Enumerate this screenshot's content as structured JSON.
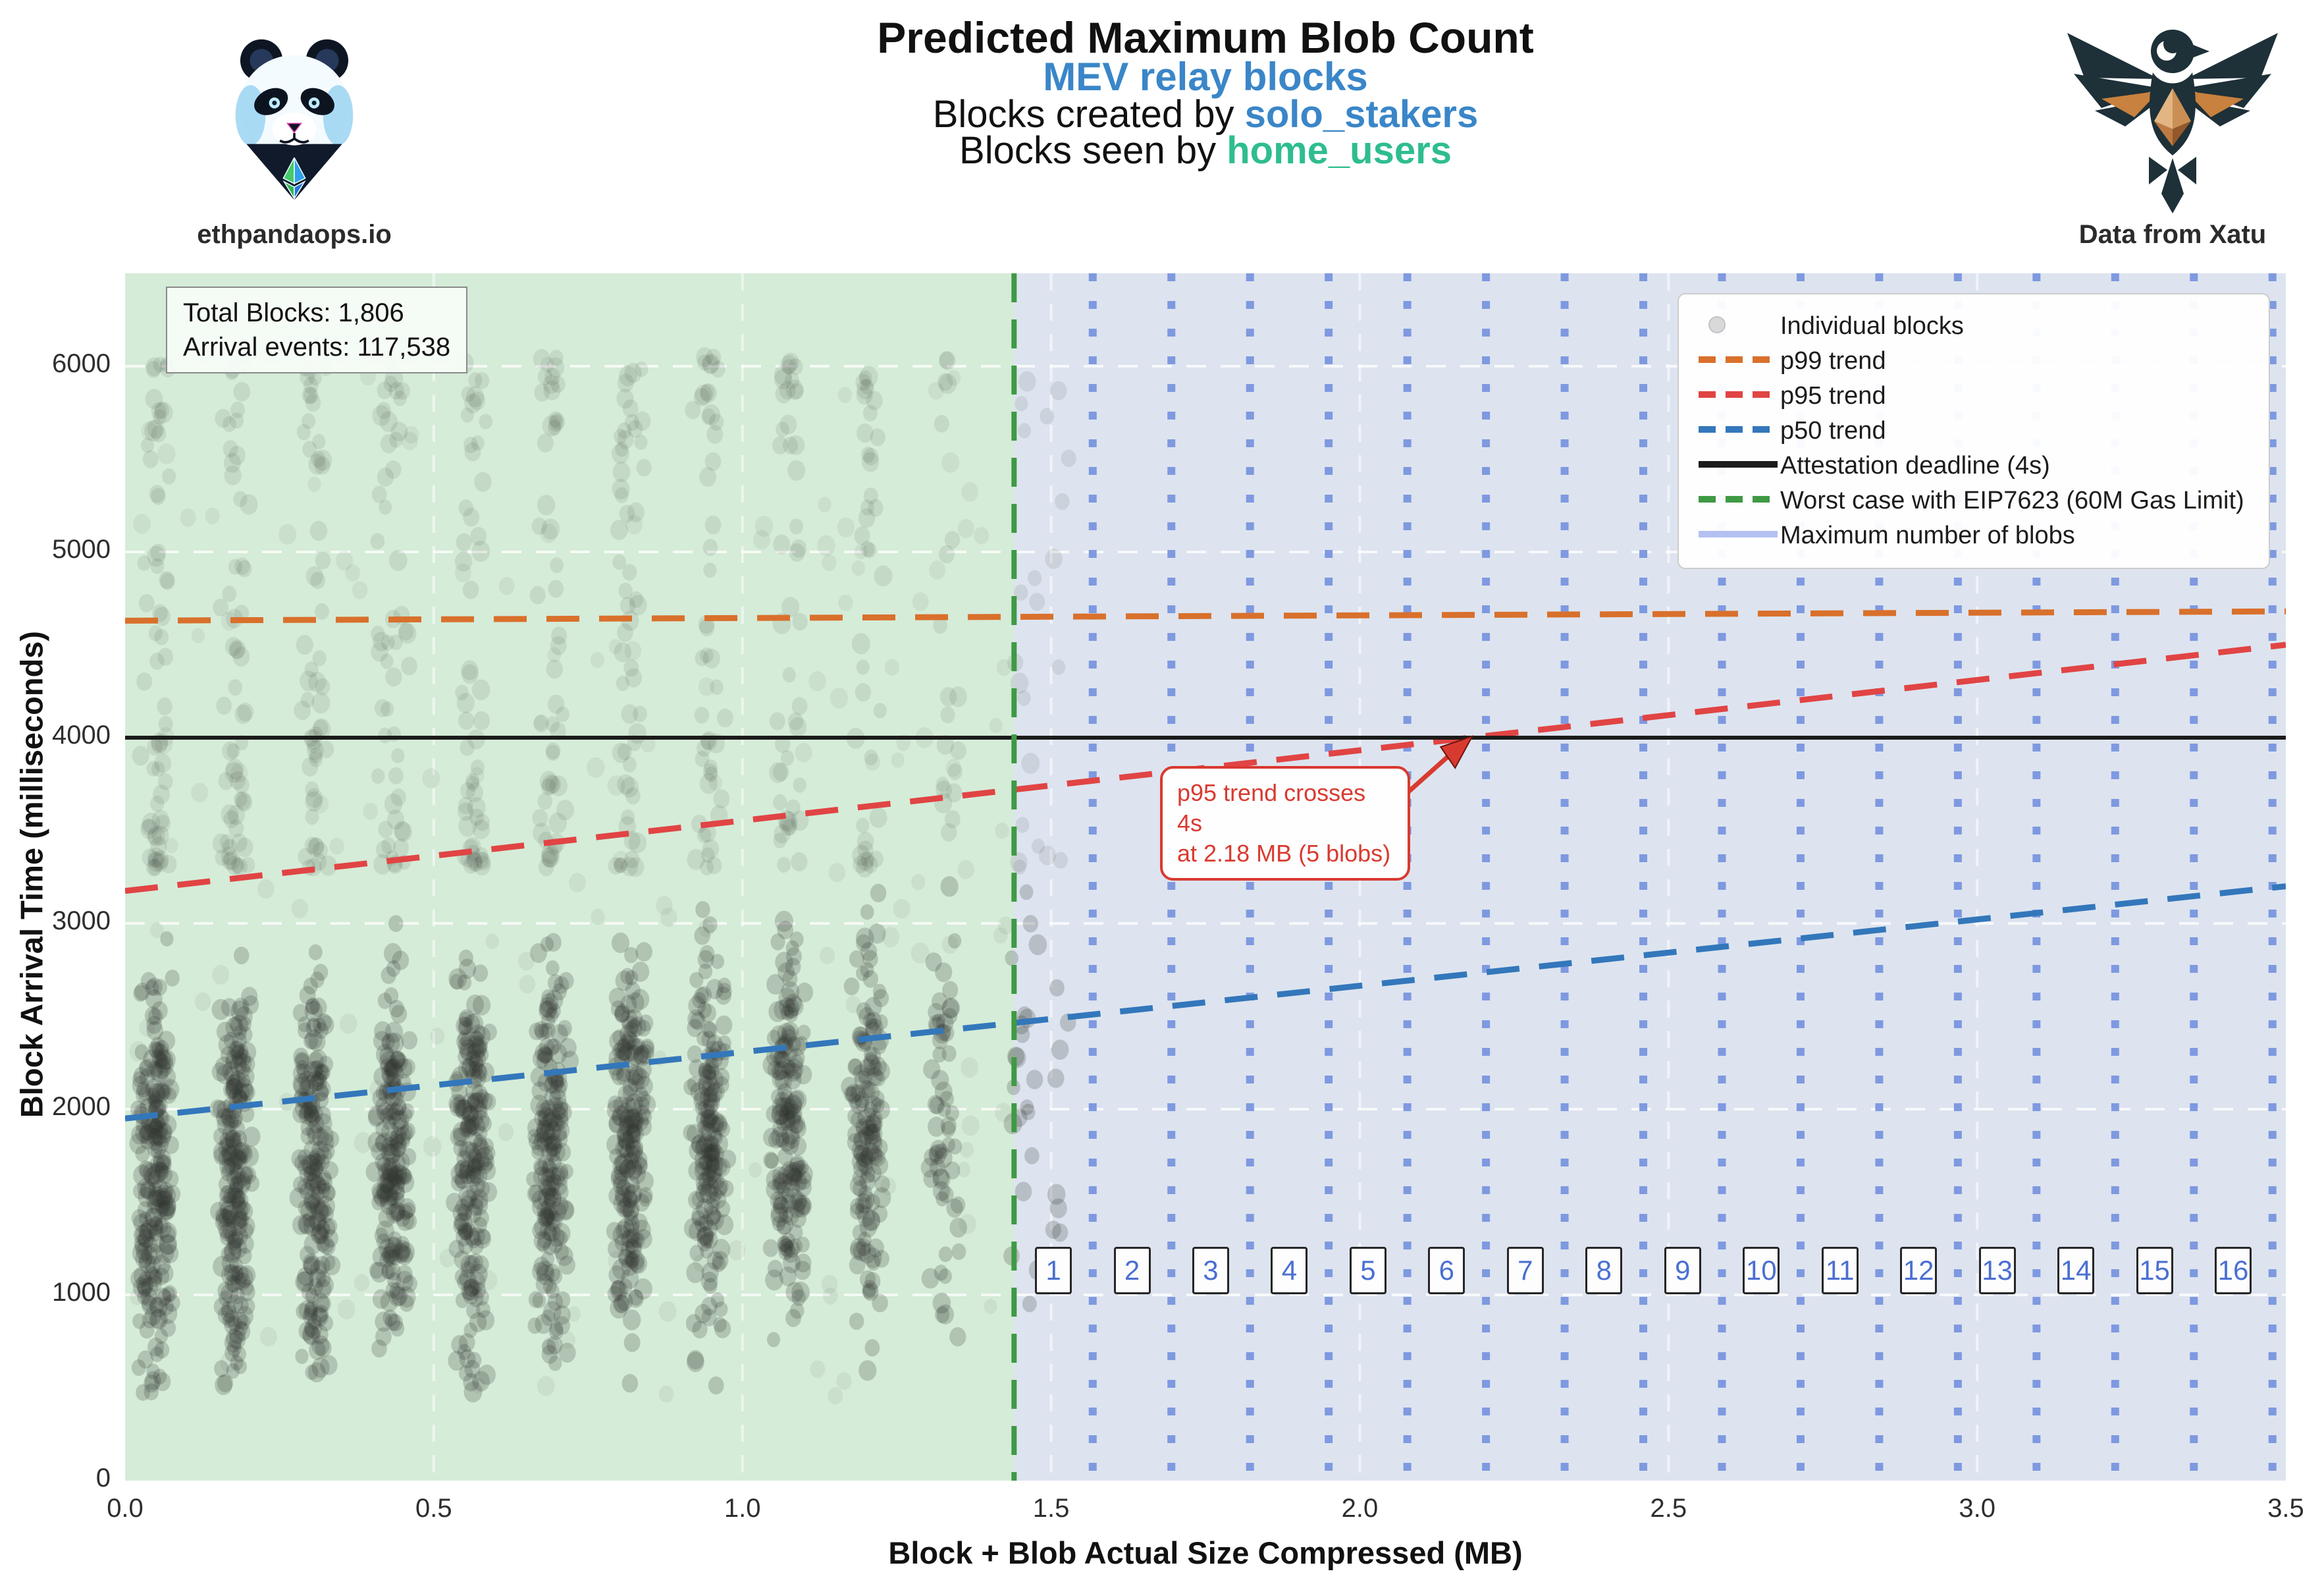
{
  "header": {
    "title": "Predicted Maximum Blob Count",
    "subtitle1": "MEV relay blocks",
    "subtitle2_prefix": "Blocks created by ",
    "subtitle2_keyword": "solo_stakers",
    "subtitle3_prefix": "Blocks seen by ",
    "subtitle3_keyword": "home_users",
    "brand_left_caption": "ethpandaops.io",
    "brand_right_caption": "Data from Xatu",
    "accent_blue": "#3a86c8",
    "accent_green": "#2ebd90"
  },
  "chart_data": {
    "type": "scatter",
    "title": "Predicted Maximum Blob Count",
    "xlabel": "Block + Blob Actual Size Compressed (MB)",
    "ylabel": "Block Arrival Time (milliseconds)",
    "xlim": [
      0,
      3.5
    ],
    "ylim": [
      0,
      6500
    ],
    "x_ticks": [
      "0.0",
      "0.5",
      "1.0",
      "1.5",
      "2.0",
      "2.5",
      "3.0",
      "3.5"
    ],
    "y_ticks": [
      0,
      1000,
      2000,
      3000,
      4000,
      5000,
      6000
    ],
    "grid": true,
    "stats_box": {
      "line1": "Total Blocks: 1,806",
      "line2": "Arrival events: 117,538"
    },
    "annotation": {
      "line1": "p95 trend crosses 4s",
      "line2": "at 2.18 MB (5 blobs)",
      "x_mb": 2.18,
      "y_ms": 4000
    },
    "zones": {
      "safe_zone_mb": [
        0,
        1.44
      ],
      "safe_zone_color": "#d5ecd8",
      "blob_zone_mb": [
        1.44,
        3.5
      ],
      "blob_zone_color": "#dde4ef"
    },
    "trends": {
      "p99": {
        "start_ms": 4630,
        "end_ms": 4680,
        "color": "#d9702c"
      },
      "p95": {
        "start_ms": 3175,
        "end_ms": 4500,
        "color": "#e14444"
      },
      "p50": {
        "start_ms": 1950,
        "end_ms": 3200,
        "color": "#3377bb"
      }
    },
    "attestation_deadline_ms": 4000,
    "deadline_color": "#1b1b1b",
    "worst_case_mb": 1.44,
    "worst_case_color": "#3f9a44",
    "blob_boundary_color": "#7b95e0",
    "blob_step_mb": 0.1274,
    "blob_count_labels": [
      "1",
      "2",
      "3",
      "4",
      "5",
      "6",
      "7",
      "8",
      "9",
      "10",
      "11",
      "12",
      "13",
      "14",
      "15",
      "16"
    ],
    "blob_label_row_ms": 1130,
    "legend": [
      {
        "label": "Individual blocks",
        "kind": "marker",
        "color": "#d9d9d9"
      },
      {
        "label": "p99 trend",
        "kind": "dashed",
        "color": "#d9702c"
      },
      {
        "label": "p95 trend",
        "kind": "dashed",
        "color": "#e14444"
      },
      {
        "label": "p50 trend",
        "kind": "dashed",
        "color": "#3377bb"
      },
      {
        "label": "Attestation deadline (4s)",
        "kind": "solid",
        "color": "#1c1c1c"
      },
      {
        "label": "Worst case with EIP7623 (60M Gas Limit)",
        "kind": "dashed",
        "color": "#3f9a44"
      },
      {
        "label": "Maximum number of blobs",
        "kind": "solid",
        "color": "#b3c1f2"
      }
    ],
    "scatter_color": "#323832",
    "scatter_bands": [
      {
        "x_mb": 0.05,
        "core": 230,
        "tail": 55
      },
      {
        "x_mb": 0.178,
        "core": 215,
        "tail": 52
      },
      {
        "x_mb": 0.306,
        "core": 195,
        "tail": 48
      },
      {
        "x_mb": 0.434,
        "core": 190,
        "tail": 46
      },
      {
        "x_mb": 0.562,
        "core": 200,
        "tail": 48
      },
      {
        "x_mb": 0.69,
        "core": 190,
        "tail": 44
      },
      {
        "x_mb": 0.818,
        "core": 200,
        "tail": 46
      },
      {
        "x_mb": 0.946,
        "core": 180,
        "tail": 42
      },
      {
        "x_mb": 1.074,
        "core": 170,
        "tail": 40
      },
      {
        "x_mb": 1.202,
        "core": 145,
        "tail": 34
      },
      {
        "x_mb": 1.33,
        "core": 60,
        "tail": 18
      },
      {
        "x_mb": 1.458,
        "core": 22,
        "tail": 12
      },
      {
        "x_mb": 1.51,
        "core": 8,
        "tail": 6
      }
    ],
    "scatter_noise": {
      "count": 150,
      "x_range_mb": [
        0.01,
        1.43
      ],
      "y_range_ms": [
        450,
        6050
      ]
    }
  }
}
